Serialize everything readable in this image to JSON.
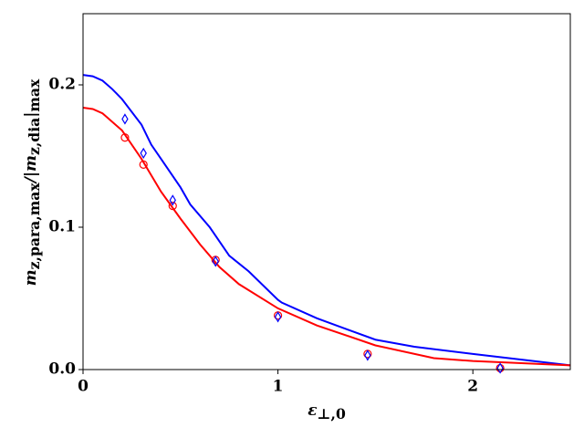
{
  "chart_data": {
    "type": "line",
    "x_label": [
      {
        "text": "ε"
      },
      {
        "text": "⊥,0",
        "sub": true
      }
    ],
    "y_label": [
      {
        "text": "m"
      },
      {
        "text": "z,para,max",
        "sub": true
      },
      {
        "text": "/|"
      },
      {
        "text": "m"
      },
      {
        "text": "z,dia",
        "sub": true
      },
      {
        "text": "|"
      },
      {
        "text": "max",
        "sub": true
      }
    ],
    "xlim": [
      0,
      2.5
    ],
    "ylim": [
      0,
      0.25
    ],
    "xticks": [
      0,
      1,
      2
    ],
    "yticks": [
      {
        "value": 0,
        "label": "0.0"
      },
      0.1,
      0.2
    ],
    "series": [
      {
        "color": "#0000ff",
        "marker": "line",
        "x": [
          0,
          0.05,
          0.1,
          0.15,
          0.2,
          0.3,
          0.35,
          0.4,
          0.5,
          0.55,
          0.65,
          0.75,
          0.85,
          1.0,
          1.02,
          1.2,
          1.5,
          1.7,
          2.0,
          2.5
        ],
        "values": [
          0.207,
          0.206,
          0.203,
          0.197,
          0.19,
          0.172,
          0.158,
          0.148,
          0.128,
          0.116,
          0.1,
          0.08,
          0.069,
          0.049,
          0.047,
          0.036,
          0.021,
          0.016,
          0.011,
          0.003
        ]
      },
      {
        "color": "#ff0000",
        "marker": "line",
        "x": [
          0,
          0.05,
          0.1,
          0.2,
          0.3,
          0.4,
          0.5,
          0.6,
          0.7,
          0.8,
          1.0,
          1.2,
          1.5,
          1.8,
          2.0,
          2.5
        ],
        "values": [
          0.184,
          0.183,
          0.18,
          0.168,
          0.148,
          0.125,
          0.106,
          0.088,
          0.072,
          0.06,
          0.043,
          0.031,
          0.017,
          0.008,
          0.006,
          0.003
        ]
      },
      {
        "color": "#ff0000",
        "marker": "circle",
        "x": [
          0.215,
          0.31,
          0.46,
          0.68,
          1.0,
          1.46,
          2.14
        ],
        "values": [
          0.163,
          0.144,
          0.115,
          0.077,
          0.038,
          0.011,
          0.001
        ]
      },
      {
        "color": "#0000ff",
        "marker": "diamond",
        "x": [
          0.215,
          0.31,
          0.46,
          0.68,
          1.0,
          1.46,
          2.14
        ],
        "values": [
          0.176,
          0.152,
          0.119,
          0.076,
          0.037,
          0.01,
          0.001
        ]
      }
    ]
  }
}
